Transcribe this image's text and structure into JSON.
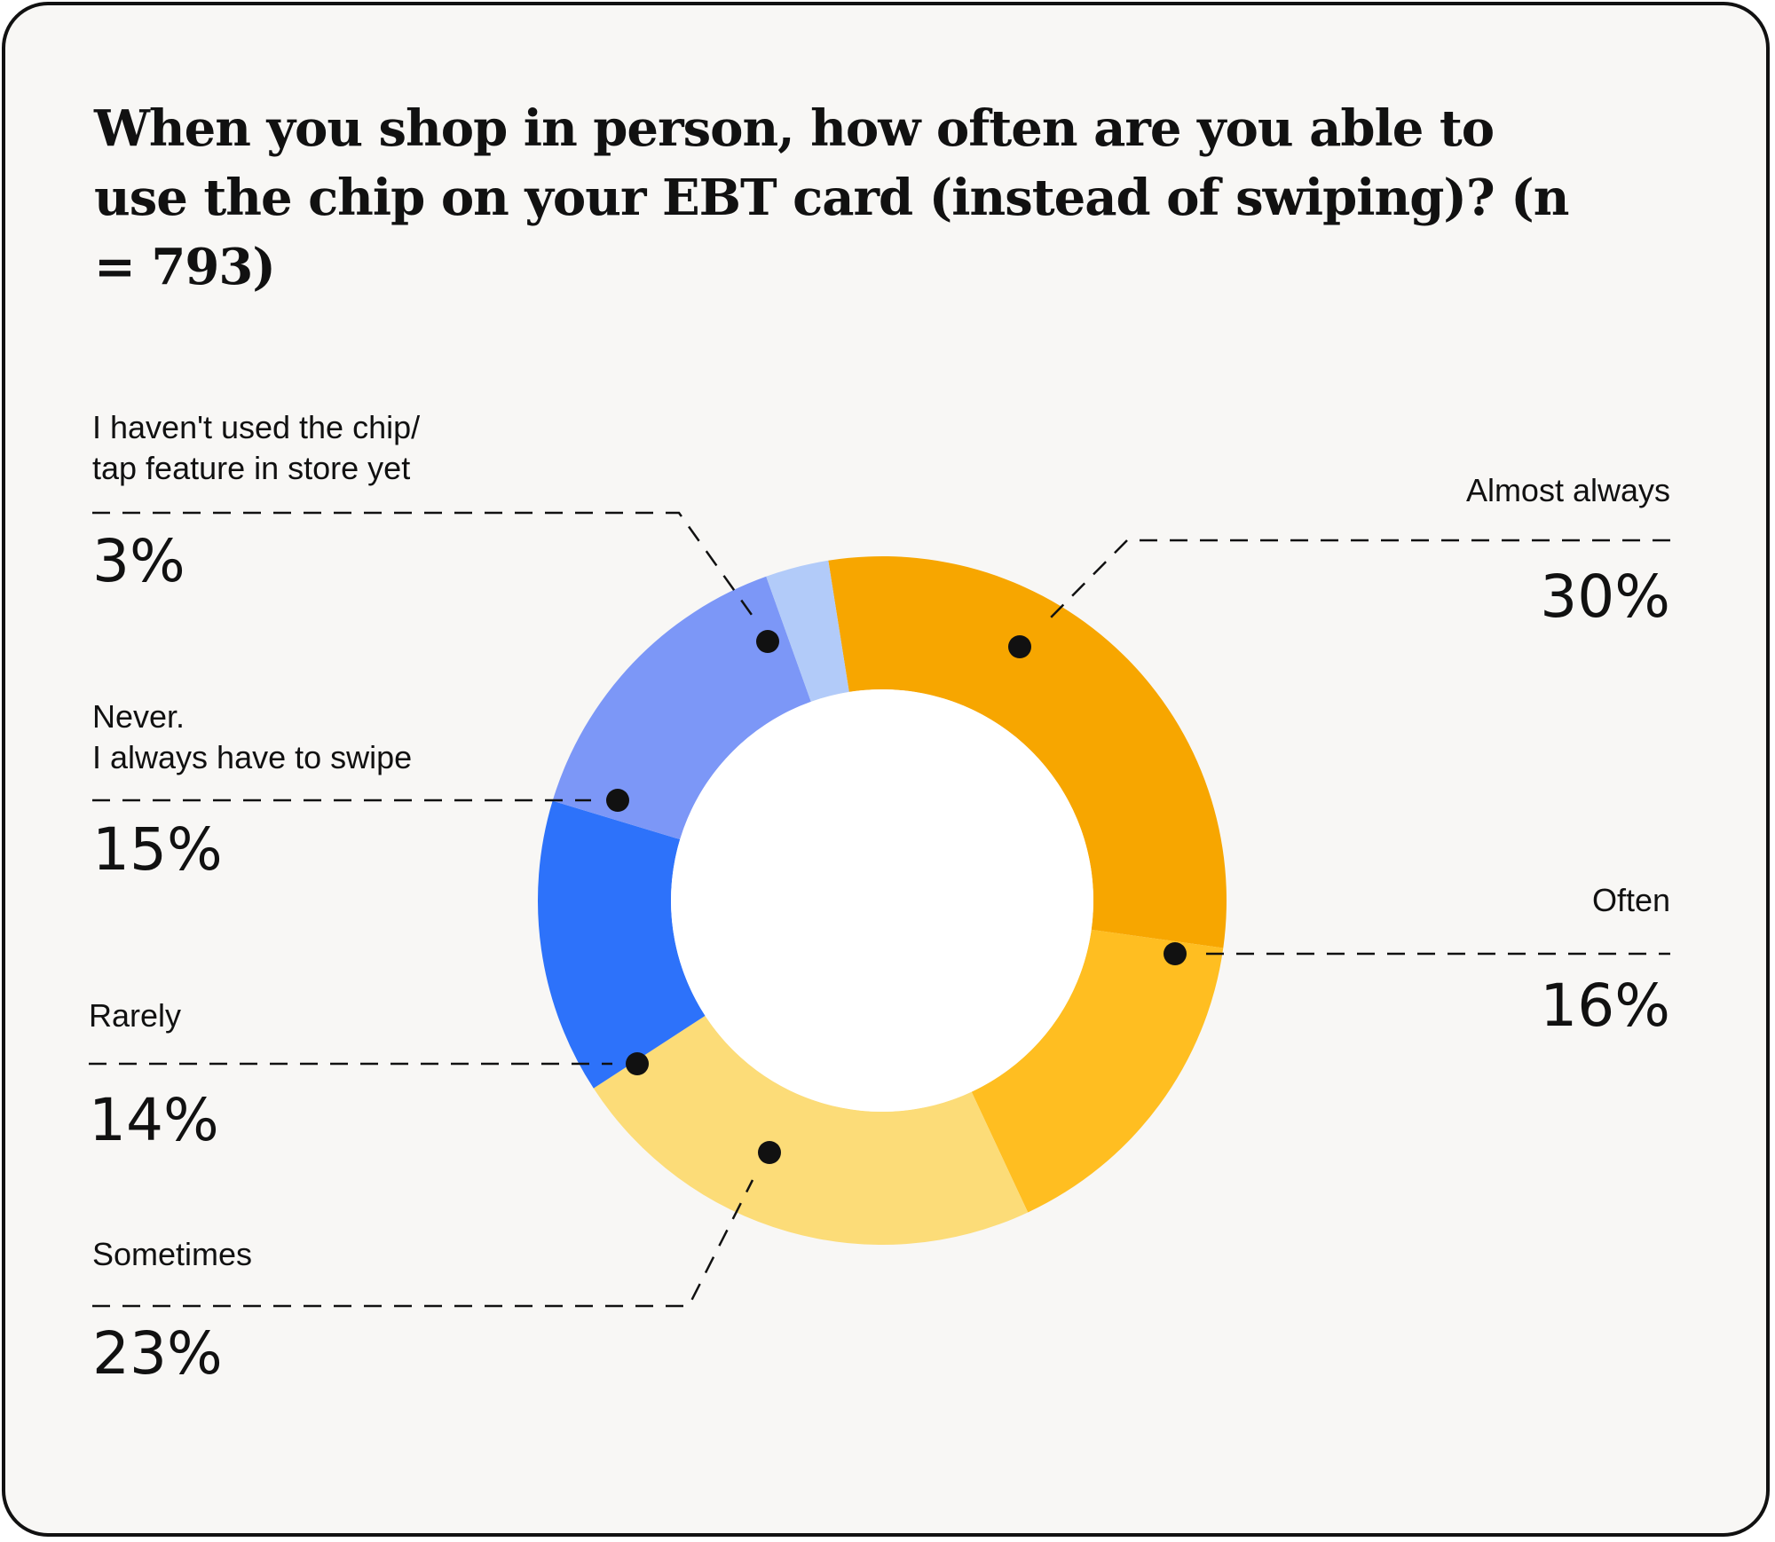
{
  "chart_data": {
    "type": "pie",
    "title": "When you shop in person, how often are you able to use the chip on your EBT card (instead of swiping)? (n = 793)",
    "categories": [
      "Almost always",
      "Often",
      "Sometimes",
      "Rarely",
      "Never. I always have to swipe",
      "I haven't used the chip/ tap feature in store yet"
    ],
    "slices": [
      {
        "label_lines": [
          "Almost always"
        ],
        "value": 30,
        "display": "30%",
        "color": "#F7A600"
      },
      {
        "label_lines": [
          "Often"
        ],
        "value": 16,
        "display": "16%",
        "color": "#FFBE21"
      },
      {
        "label_lines": [
          "Sometimes"
        ],
        "value": 23,
        "display": "23%",
        "color": "#FCDC78"
      },
      {
        "label_lines": [
          "Rarely"
        ],
        "value": 14,
        "display": "14%",
        "color": "#2D72FA"
      },
      {
        "label_lines": [
          "Never.",
          "I always have to swipe"
        ],
        "value": 15,
        "display": "15%",
        "color": "#7C97F7"
      },
      {
        "label_lines": [
          "I haven't used the chip/",
          "tap feature in store yet"
        ],
        "value": 3,
        "display": "3%",
        "color": "#B2CBF9"
      }
    ],
    "legend": "none",
    "grid": false
  }
}
